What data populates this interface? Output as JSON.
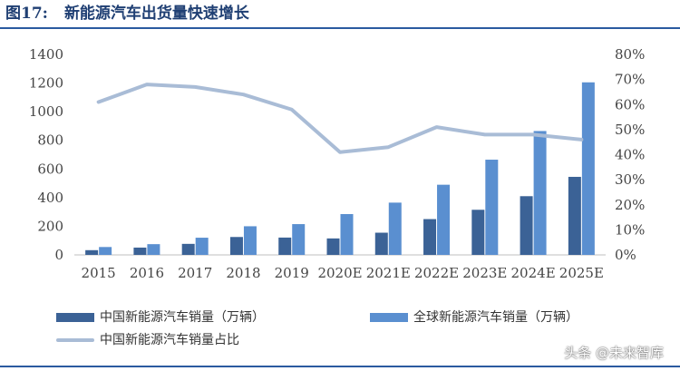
{
  "figure": {
    "number": "图17:",
    "title": "新能源汽车出货量快速增长"
  },
  "colors": {
    "china_bar": "#3b6296",
    "global_bar": "#5a8fd0",
    "share_line": "#a9bcd6",
    "rule": "#2b5aa0",
    "title": "#1f3f73"
  },
  "watermark": "头条 @未来智库",
  "chart_data": {
    "type": "bar",
    "categories": [
      "2015",
      "2016",
      "2017",
      "2018",
      "2019",
      "2020E",
      "2021E",
      "2022E",
      "2023E",
      "2024E",
      "2025E"
    ],
    "series": [
      {
        "name": "中国新能源汽车销量（万辆）",
        "type": "bar",
        "axis": "left",
        "values": [
          33,
          51,
          77,
          125,
          121,
          115,
          155,
          250,
          315,
          410,
          545
        ]
      },
      {
        "name": "全球新能源汽车销量（万辆）",
        "type": "bar",
        "axis": "left",
        "values": [
          55,
          75,
          120,
          200,
          215,
          285,
          365,
          490,
          665,
          865,
          1205
        ]
      },
      {
        "name": "中国新能源汽车销量占比",
        "type": "line",
        "axis": "right",
        "values": [
          61,
          68,
          67,
          64,
          58,
          41,
          43,
          51,
          48,
          48,
          46
        ]
      }
    ],
    "yaxis_left": {
      "min": 0,
      "max": 1400,
      "ticks": [
        "0",
        "200",
        "400",
        "600",
        "800",
        "1000",
        "1200",
        "1400"
      ]
    },
    "yaxis_right": {
      "min": 0,
      "max": 80,
      "ticks": [
        "0%",
        "10%",
        "20%",
        "30%",
        "40%",
        "50%",
        "60%",
        "70%",
        "80%"
      ]
    },
    "title": "",
    "xlabel": "",
    "ylabel": "",
    "grid": false,
    "legend_position": "bottom"
  }
}
